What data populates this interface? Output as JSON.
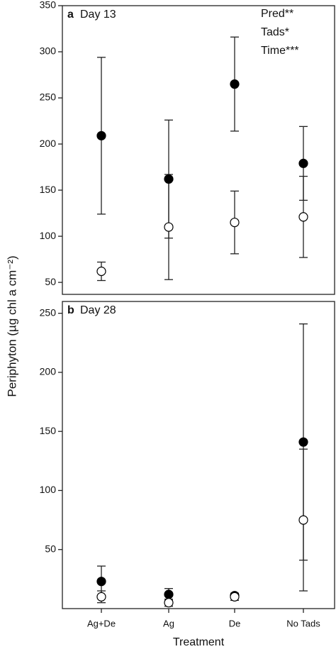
{
  "chart_data": [
    {
      "type": "scatter",
      "panel_label": "a",
      "title": "Day 13",
      "annotations": [
        "Pred**",
        "Tads*",
        "Time***"
      ],
      "y_label": "Periphyton (µg chl a cm⁻²)",
      "categories": [
        "Ag+De",
        "Ag",
        "De",
        "No Tads"
      ],
      "series": [
        {
          "color": "#000000",
          "marker_fill": "#000000",
          "values": [
            209,
            162,
            265,
            179
          ],
          "errors": [
            85,
            64,
            51,
            40
          ]
        },
        {
          "color": "#000000",
          "marker_fill": "#ffffff",
          "values": [
            62,
            110,
            115,
            121
          ],
          "errors": [
            10,
            57,
            34,
            44
          ]
        }
      ],
      "ylim": [
        37,
        350
      ],
      "yticks": [
        50,
        100,
        150,
        200,
        250,
        300,
        350
      ]
    },
    {
      "type": "scatter",
      "panel_label": "b",
      "title": "Day 28",
      "x_label": "Treatment",
      "categories": [
        "Ag+De",
        "Ag",
        "De",
        "No Tads"
      ],
      "series": [
        {
          "color": "#000000",
          "marker_fill": "#000000",
          "values": [
            23,
            12,
            11,
            141
          ],
          "errors": [
            13,
            5,
            2,
            100
          ]
        },
        {
          "color": "#000000",
          "marker_fill": "#ffffff",
          "values": [
            10,
            5,
            10,
            75
          ],
          "errors": [
            5,
            3,
            3,
            60
          ]
        }
      ],
      "ylim": [
        0,
        260
      ],
      "yticks": [
        50,
        100,
        150,
        200,
        250
      ]
    }
  ]
}
